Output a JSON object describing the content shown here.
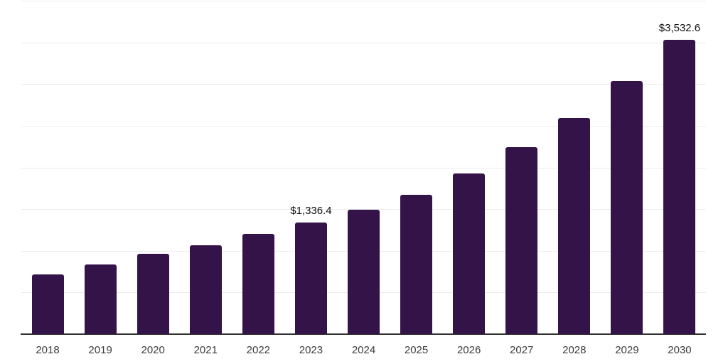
{
  "chart_style": {
    "background_color": "#ffffff",
    "bar_color": "#341349",
    "grid_color": "#ededed",
    "axis_color": "#333333",
    "tick_label_color": "#3c3c3c",
    "data_label_color": "#111111"
  },
  "chart_data": {
    "type": "bar",
    "title": "",
    "xlabel": "",
    "ylabel": "",
    "categories": [
      "2018",
      "2019",
      "2020",
      "2021",
      "2022",
      "2023",
      "2024",
      "2025",
      "2026",
      "2027",
      "2028",
      "2029",
      "2030"
    ],
    "values": [
      715,
      835,
      960,
      1070,
      1200,
      1336.4,
      1495,
      1675,
      1930,
      2245,
      2595,
      3035,
      3532.6
    ],
    "value_labels": [
      "",
      "",
      "",
      "",
      "",
      "$1,336.4",
      "",
      "",
      "",
      "",
      "",
      "",
      "$3,532.6"
    ],
    "ylim": [
      0,
      4000
    ],
    "ytick_step": 500,
    "grid": "horizontal",
    "gridlines_labeled": false,
    "legend": false
  }
}
